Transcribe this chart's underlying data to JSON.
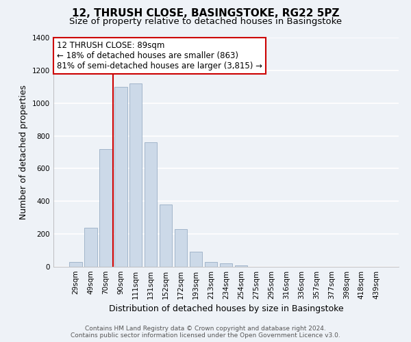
{
  "title1": "12, THRUSH CLOSE, BASINGSTOKE, RG22 5PZ",
  "title2": "Size of property relative to detached houses in Basingstoke",
  "xlabel": "Distribution of detached houses by size in Basingstoke",
  "ylabel": "Number of detached properties",
  "bar_labels": [
    "29sqm",
    "49sqm",
    "70sqm",
    "90sqm",
    "111sqm",
    "131sqm",
    "152sqm",
    "172sqm",
    "193sqm",
    "213sqm",
    "234sqm",
    "254sqm",
    "275sqm",
    "295sqm",
    "316sqm",
    "336sqm",
    "357sqm",
    "377sqm",
    "398sqm",
    "418sqm",
    "439sqm"
  ],
  "bar_values": [
    30,
    240,
    720,
    1100,
    1120,
    760,
    380,
    230,
    90,
    30,
    20,
    10,
    0,
    0,
    0,
    0,
    0,
    0,
    0,
    0,
    0
  ],
  "bar_color": "#ccd9e8",
  "bar_edge_color": "#99aec4",
  "vline_color": "#cc0000",
  "annotation_line1": "12 THRUSH CLOSE: 89sqm",
  "annotation_line2": "← 18% of detached houses are smaller (863)",
  "annotation_line3": "81% of semi-detached houses are larger (3,815) →",
  "annotation_box_facecolor": "#ffffff",
  "annotation_box_edgecolor": "#cc0000",
  "ylim": [
    0,
    1400
  ],
  "yticks": [
    0,
    200,
    400,
    600,
    800,
    1000,
    1200,
    1400
  ],
  "footer_line1": "Contains HM Land Registry data © Crown copyright and database right 2024.",
  "footer_line2": "Contains public sector information licensed under the Open Government Licence v3.0.",
  "background_color": "#eef2f7",
  "grid_color": "#ffffff",
  "title1_fontsize": 11,
  "title2_fontsize": 9.5,
  "axis_label_fontsize": 9,
  "tick_fontsize": 7.5,
  "annotation_fontsize": 8.5,
  "footer_fontsize": 6.5
}
